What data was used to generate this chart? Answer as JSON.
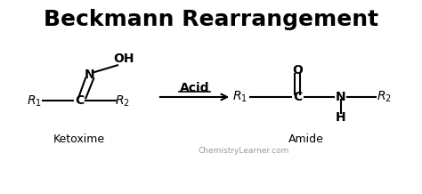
{
  "title": "Beckmann Rearrangement",
  "title_fontsize": 18,
  "bg_color": "#ffffff",
  "text_color": "#000000",
  "label_ketoxime": "Ketoxime",
  "label_amide": "Amide",
  "watermark": "ChemistryLearner.com",
  "arrow_label": "Acid",
  "figsize": [
    4.74,
    2.18
  ],
  "dpi": 100
}
